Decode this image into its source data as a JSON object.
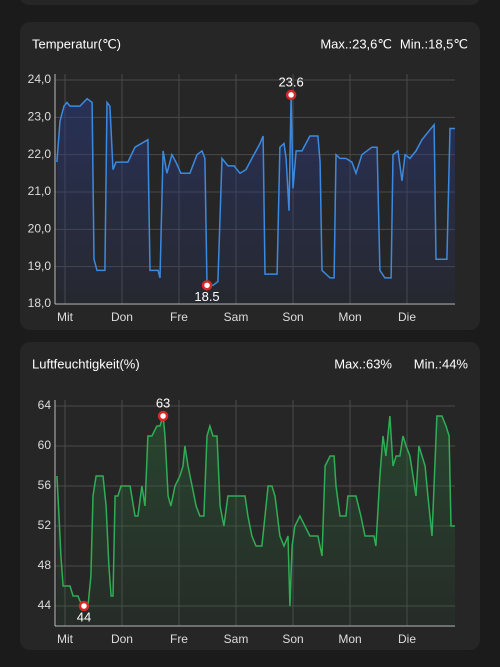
{
  "chart_data": [
    {
      "type": "line",
      "title": "Temperatur(℃)",
      "max_text": "Max.:23,6℃",
      "min_text": "Min.:18,5℃",
      "x": [
        -3.4,
        -2.1,
        -0.4,
        0.8,
        2.1,
        6.3,
        9.3,
        11.4,
        12.2,
        13.5,
        16.8,
        17.7,
        18.9,
        20.2,
        21.5,
        26.5,
        29.5,
        34.9,
        35.8,
        39.2,
        40.0,
        41.3,
        42.9,
        45.0,
        46.7,
        48.8,
        52.6,
        55.6,
        57.7,
        58.9,
        59.8,
        62.3,
        64.4,
        66.1,
        68.6,
        71.2,
        73.7,
        76.2,
        78.7,
        82.1,
        83.4,
        84.2,
        89.3,
        90.5,
        92.2,
        93.1,
        94.3,
        95.2,
        96.0,
        97.3,
        99.8,
        103.1,
        106.5,
        107.4,
        108.2,
        111.6,
        113.3,
        114.1,
        115.8,
        118.3,
        120.8,
        122.5,
        125.0,
        129.2,
        131.4,
        132.6,
        134.7,
        137.3,
        138.1,
        140.2,
        141.9,
        143.2,
        145.2,
        147.8,
        150.3,
        152.8,
        155.4,
        156.2,
        160.8,
        162.1,
        164.2
      ],
      "series": [
        {
          "name": "Temperatur",
          "color": "#3b8ae0",
          "values": [
            21.8,
            22.9,
            23.3,
            23.4,
            23.3,
            23.3,
            23.5,
            23.4,
            19.2,
            18.9,
            18.9,
            23.4,
            23.3,
            21.6,
            21.8,
            21.8,
            22.2,
            22.4,
            18.9,
            18.9,
            18.7,
            22.1,
            21.5,
            22.0,
            21.8,
            21.5,
            21.5,
            22.0,
            22.1,
            21.9,
            18.5,
            18.5,
            18.6,
            21.9,
            21.7,
            21.7,
            21.5,
            21.6,
            21.9,
            22.3,
            22.5,
            18.8,
            18.8,
            22.2,
            22.3,
            21.9,
            20.5,
            23.6,
            21.1,
            22.1,
            22.1,
            22.5,
            22.5,
            21.8,
            18.9,
            18.7,
            18.7,
            22.0,
            21.9,
            21.9,
            21.8,
            21.5,
            22.0,
            22.2,
            22.2,
            18.9,
            18.7,
            18.7,
            22.0,
            22.1,
            21.3,
            22.0,
            21.9,
            22.1,
            22.4,
            22.6,
            22.8,
            19.2,
            19.2,
            22.7,
            22.7
          ]
        }
      ],
      "max_point": {
        "x": 95.2,
        "y": 23.6
      },
      "min_point": {
        "x": 59.8,
        "y": 18.5
      },
      "xlim": [
        -4.2,
        164.2
      ],
      "xticks": [
        {
          "value": 0,
          "label": "Mit"
        },
        {
          "value": 24,
          "label": "Don"
        },
        {
          "value": 48,
          "label": "Fre"
        },
        {
          "value": 72,
          "label": "Sam"
        },
        {
          "value": 96,
          "label": "Son"
        },
        {
          "value": 120,
          "label": "Mon"
        },
        {
          "value": 144,
          "label": "Die"
        }
      ],
      "ylim": [
        18,
        24
      ],
      "yticks": [
        {
          "value": 18,
          "label": "18,0"
        },
        {
          "value": 19,
          "label": "19,0"
        },
        {
          "value": 20,
          "label": "20,0"
        },
        {
          "value": 21,
          "label": "21,0"
        },
        {
          "value": 22,
          "label": "22,0"
        },
        {
          "value": 23,
          "label": "23,0"
        },
        {
          "value": 24,
          "label": "24,0"
        }
      ],
      "grid": true
    },
    {
      "type": "line",
      "title": "Luftfeuchtigkeit(%)",
      "max_text": "Max.:63%",
      "min_text": "Min.:44%",
      "x": [
        -3.4,
        -2.5,
        -1.7,
        -0.8,
        2.1,
        3.4,
        5.5,
        6.3,
        8.0,
        9.7,
        10.9,
        11.8,
        13.1,
        16.0,
        17.3,
        18.5,
        19.4,
        20.2,
        21.1,
        22.3,
        23.6,
        27.4,
        29.5,
        30.7,
        32.4,
        33.7,
        34.9,
        36.6,
        38.7,
        40.0,
        41.3,
        42.1,
        43.4,
        44.6,
        46.3,
        48.4,
        49.7,
        50.5,
        51.8,
        53.5,
        55.2,
        56.8,
        58.5,
        59.8,
        61.0,
        62.3,
        64.0,
        65.3,
        66.9,
        68.6,
        72.0,
        75.8,
        77.0,
        78.7,
        80.4,
        82.9,
        85.5,
        87.1,
        88.4,
        90.5,
        92.2,
        93.9,
        94.7,
        95.6,
        96.8,
        98.9,
        101.0,
        103.1,
        106.5,
        108.2,
        109.5,
        111.6,
        113.3,
        114.1,
        115.8,
        118.3,
        119.1,
        122.5,
        124.6,
        126.3,
        128.4,
        130.1,
        130.9,
        132.6,
        133.9,
        135.1,
        136.8,
        138.1,
        139.4,
        141.0,
        142.3,
        143.6,
        145.2,
        146.5,
        147.8,
        149.0,
        151.6,
        152.8,
        154.5,
        156.6,
        158.7,
        160.4,
        161.7,
        162.5,
        164.2
      ],
      "series": [
        {
          "name": "Luftfeuchtigkeit",
          "color": "#2fae55",
          "values": [
            57,
            53,
            49,
            46,
            46,
            45,
            45,
            44.5,
            44,
            44,
            47,
            55,
            57,
            57,
            54,
            48,
            45,
            45,
            55,
            55,
            56,
            56,
            53,
            53,
            56,
            54,
            61,
            61,
            62,
            62,
            63,
            61,
            55,
            54,
            56,
            57,
            58,
            60,
            58,
            56,
            54,
            53,
            53,
            61,
            62,
            61,
            61,
            54,
            52,
            55,
            55,
            55,
            53,
            51,
            50,
            50,
            56,
            56,
            55,
            51,
            50,
            51,
            44,
            50,
            52,
            53,
            52,
            51,
            51,
            49,
            58,
            59,
            59,
            56,
            53,
            53,
            55,
            55,
            53,
            51,
            51,
            51,
            50,
            57,
            61,
            59,
            63,
            58,
            59,
            59,
            61,
            60,
            59,
            57,
            55,
            60,
            58,
            55,
            51,
            63,
            63,
            62,
            61,
            52,
            52
          ]
        }
      ],
      "max_point": {
        "x": 41.3,
        "y": 63
      },
      "min_point": {
        "x": 8.0,
        "y": 44
      },
      "xlim": [
        -4.2,
        164.2
      ],
      "xticks": [
        {
          "value": 0,
          "label": "Mit"
        },
        {
          "value": 24,
          "label": "Don"
        },
        {
          "value": 48,
          "label": "Fre"
        },
        {
          "value": 72,
          "label": "Sam"
        },
        {
          "value": 96,
          "label": "Son"
        },
        {
          "value": 120,
          "label": "Mon"
        },
        {
          "value": 144,
          "label": "Die"
        }
      ],
      "ylim": [
        42,
        64
      ],
      "yticks": [
        44,
        48,
        52,
        56,
        60,
        64
      ],
      "grid": true
    }
  ]
}
